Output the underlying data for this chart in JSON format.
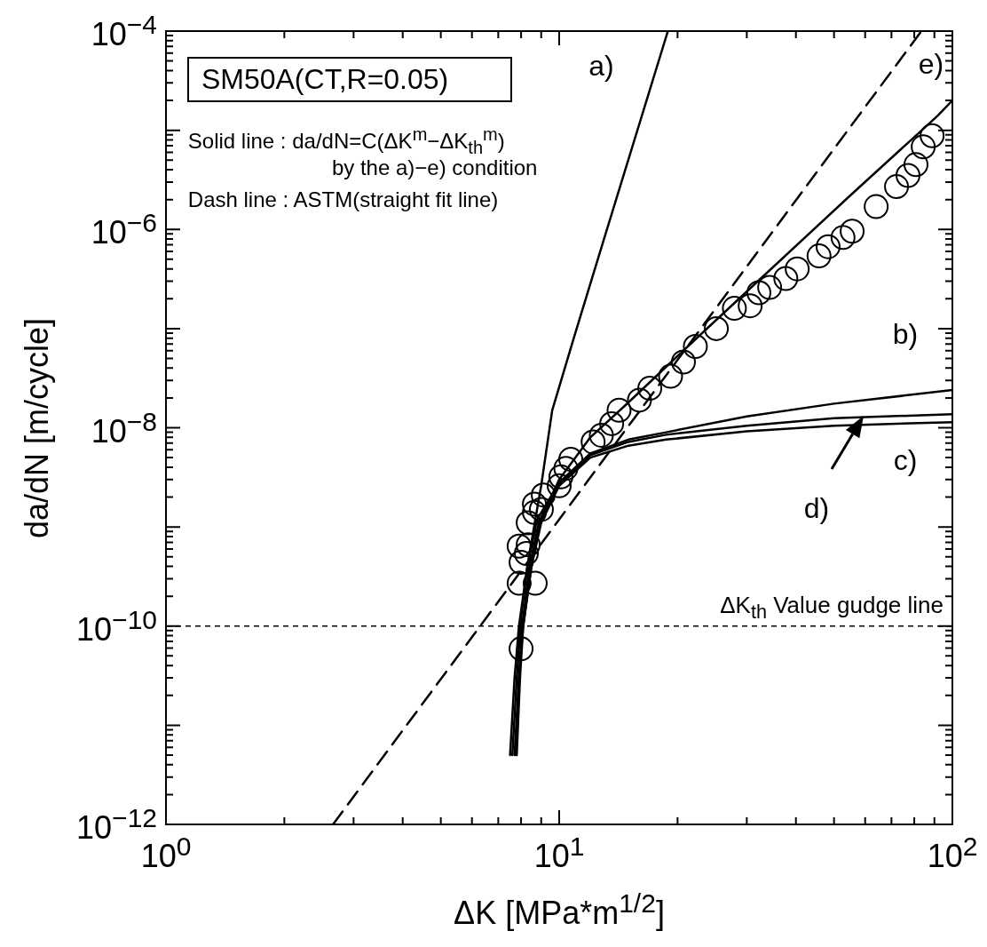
{
  "chart_data": {
    "type": "scatter",
    "xlabel": "ΔK [MPa*m$^{1/2}$]",
    "ylabel": "da/dN [m/cycle]",
    "log": "xy",
    "xlim": [
      1,
      100
    ],
    "ylim": [
      1e-12,
      0.0001
    ],
    "xticks": [
      {
        "value": 1,
        "label": "10$^{0}$"
      },
      {
        "value": 2,
        "label": null
      },
      {
        "value": 3,
        "label": null
      },
      {
        "value": 4,
        "label": null
      },
      {
        "value": 5,
        "label": null
      },
      {
        "value": 6,
        "label": null
      },
      {
        "value": 7,
        "label": null
      },
      {
        "value": 8,
        "label": null
      },
      {
        "value": 9,
        "label": null
      },
      {
        "value": 10,
        "label": "10$^{1}$"
      },
      {
        "value": 20,
        "label": null
      },
      {
        "value": 30,
        "label": null
      },
      {
        "value": 40,
        "label": null
      },
      {
        "value": 50,
        "label": null
      },
      {
        "value": 60,
        "label": null
      },
      {
        "value": 70,
        "label": null
      },
      {
        "value": 80,
        "label": null
      },
      {
        "value": 90,
        "label": null
      },
      {
        "value": 100,
        "label": "10$^{2}$"
      }
    ],
    "yticks": [
      {
        "value": 1e-12,
        "label": "10$^{−12}$"
      },
      {
        "value": 2e-12,
        "label": null
      },
      {
        "value": 3e-12,
        "label": null
      },
      {
        "value": 4e-12,
        "label": null
      },
      {
        "value": 5e-12,
        "label": null
      },
      {
        "value": 6e-12,
        "label": null
      },
      {
        "value": 7e-12,
        "label": null
      },
      {
        "value": 8e-12,
        "label": null
      },
      {
        "value": 9e-12,
        "label": null
      },
      {
        "value": 1e-11,
        "label": null
      },
      {
        "value": 2e-11,
        "label": null
      },
      {
        "value": 3e-11,
        "label": null
      },
      {
        "value": 4e-11,
        "label": null
      },
      {
        "value": 5e-11,
        "label": null
      },
      {
        "value": 6e-11,
        "label": null
      },
      {
        "value": 7e-11,
        "label": null
      },
      {
        "value": 8e-11,
        "label": null
      },
      {
        "value": 9e-11,
        "label": null
      },
      {
        "value": 1e-10,
        "label": "10$^{−10}$"
      },
      {
        "value": 2e-10,
        "label": null
      },
      {
        "value": 3e-10,
        "label": null
      },
      {
        "value": 4e-10,
        "label": null
      },
      {
        "value": 5e-10,
        "label": null
      },
      {
        "value": 6e-10,
        "label": null
      },
      {
        "value": 7e-10,
        "label": null
      },
      {
        "value": 8e-10,
        "label": null
      },
      {
        "value": 9e-10,
        "label": null
      },
      {
        "value": 1e-09,
        "label": null
      },
      {
        "value": 2e-09,
        "label": null
      },
      {
        "value": 3e-09,
        "label": null
      },
      {
        "value": 4e-09,
        "label": null
      },
      {
        "value": 5e-09,
        "label": null
      },
      {
        "value": 6e-09,
        "label": null
      },
      {
        "value": 7e-09,
        "label": null
      },
      {
        "value": 8e-09,
        "label": null
      },
      {
        "value": 9e-09,
        "label": null
      },
      {
        "value": 1e-08,
        "label": "10$^{−8}$"
      },
      {
        "value": 2e-08,
        "label": null
      },
      {
        "value": 3e-08,
        "label": null
      },
      {
        "value": 4e-08,
        "label": null
      },
      {
        "value": 5e-08,
        "label": null
      },
      {
        "value": 6e-08,
        "label": null
      },
      {
        "value": 7e-08,
        "label": null
      },
      {
        "value": 8e-08,
        "label": null
      },
      {
        "value": 9e-08,
        "label": null
      },
      {
        "value": 1e-07,
        "label": null
      },
      {
        "value": 2e-07,
        "label": null
      },
      {
        "value": 3e-07,
        "label": null
      },
      {
        "value": 4e-07,
        "label": null
      },
      {
        "value": 5e-07,
        "label": null
      },
      {
        "value": 6e-07,
        "label": null
      },
      {
        "value": 7e-07,
        "label": null
      },
      {
        "value": 8e-07,
        "label": null
      },
      {
        "value": 9e-07,
        "label": null
      },
      {
        "value": 1e-06,
        "label": "10$^{−6}$"
      },
      {
        "value": 2e-06,
        "label": null
      },
      {
        "value": 3e-06,
        "label": null
      },
      {
        "value": 4e-06,
        "label": null
      },
      {
        "value": 5e-06,
        "label": null
      },
      {
        "value": 6e-06,
        "label": null
      },
      {
        "value": 7e-06,
        "label": null
      },
      {
        "value": 8e-06,
        "label": null
      },
      {
        "value": 9e-06,
        "label": null
      },
      {
        "value": 1e-05,
        "label": null
      },
      {
        "value": 2e-05,
        "label": null
      },
      {
        "value": 3e-05,
        "label": null
      },
      {
        "value": 4e-05,
        "label": null
      },
      {
        "value": 5e-05,
        "label": null
      },
      {
        "value": 6e-05,
        "label": null
      },
      {
        "value": 7e-05,
        "label": null
      },
      {
        "value": 8e-05,
        "label": null
      },
      {
        "value": 9e-05,
        "label": null
      },
      {
        "value": 0.0001,
        "label": "10$^{−4}$"
      }
    ],
    "grid": false,
    "legend": "right",
    "annotations": [
      "SM50A(CT,R=0.05)",
      "Solid line : da/dN=C(ΔK$^{m}$−ΔK$_{th}$$^{m}$)",
      "by the a)−e) condition",
      "Dash line : ASTM(straight fit line)"
    ],
    "ref_lines": [
      {
        "axis": "y",
        "value": 1e-10,
        "label": "ΔK$_{th}$ Value gudge line",
        "line_style": "dashed",
        "color": "#000000"
      }
    ],
    "series": [
      {
        "color": "#000000",
        "marker": "circle",
        "x": [
          8.0,
          7.91,
          8.69,
          8.0,
          8.25,
          7.91,
          8.34,
          8.34,
          8.65,
          9.01,
          8.65,
          9.11,
          10.0,
          10.1,
          10.4,
          10.7,
          12.2,
          12.8,
          13.6,
          14.2,
          16.0,
          17.0,
          19.2,
          20.7,
          22.2,
          25.1,
          27.9,
          30.6,
          32.2,
          34.3,
          37.7,
          40.3,
          45.8,
          48.3,
          52.7,
          55.6,
          64.0,
          72.1,
          77.1,
          80.8,
          84.3,
          88.8
        ],
        "values": [
          5.9e-11,
          2.7e-10,
          2.7e-10,
          4.4e-10,
          5.4e-10,
          6.4e-10,
          6.6e-10,
          1.1e-09,
          1.4e-09,
          1.5e-09,
          1.7e-09,
          2.1e-09,
          2.6e-09,
          3.2e-09,
          3.9e-09,
          4.8e-09,
          7.2e-09,
          8.4e-09,
          1.1e-08,
          1.5e-08,
          1.9e-08,
          2.5e-08,
          3.3e-08,
          4.6e-08,
          6.6e-08,
          1e-07,
          1.6e-07,
          1.7e-07,
          2.3e-07,
          2.6e-07,
          3.2e-07,
          4e-07,
          5.4e-07,
          6.7e-07,
          8.3e-07,
          9.6e-07,
          1.7e-06,
          2.7e-06,
          3.5e-06,
          4.5e-06,
          6.8e-06,
          8.8e-06
        ]
      },
      {
        "type": "line",
        "color": "#000000",
        "line_style": "dashed",
        "x": [
          2.66,
          83.4
        ],
        "values": [
          1e-12,
          0.0001
        ]
      },
      {
        "type": "line",
        "name": "a)",
        "color": "#000000",
        "line_style": "solid",
        "x": [
          7.6,
          7.8,
          8.0,
          8.3,
          8.7,
          9.0,
          9.6,
          10.9,
          13,
          18.9
        ],
        "values": [
          5e-12,
          3e-11,
          1.2e-10,
          4e-10,
          1.2e-09,
          2.6e-09,
          1.5e-08,
          8.1e-08,
          8e-07,
          0.0001
        ]
      },
      {
        "type": "line",
        "name": "b)",
        "color": "#000000",
        "line_style": "solid",
        "x": [
          7.5,
          7.7,
          7.9,
          8.3,
          8.8,
          10,
          12,
          15,
          18.7,
          30,
          50,
          100
        ],
        "values": [
          5e-12,
          3e-11,
          1e-10,
          4e-10,
          1.2e-09,
          2.8e-09,
          5.5e-09,
          7.6e-09,
          9e-09,
          1.3e-08,
          1.75e-08,
          2.4e-08
        ]
      },
      {
        "type": "line",
        "name": "c)",
        "color": "#000000",
        "line_style": "solid",
        "x": [
          7.8,
          7.95,
          8.1,
          8.5,
          9.0,
          10,
          12,
          15,
          18.7,
          30,
          50,
          100
        ],
        "values": [
          5e-12,
          3e-11,
          1e-10,
          4e-10,
          1.1e-09,
          2.6e-09,
          5e-09,
          6.6e-09,
          7.6e-09,
          9.2e-09,
          1.05e-08,
          1.14e-08
        ]
      },
      {
        "type": "line",
        "name": "d)",
        "color": "#000000",
        "line_style": "solid",
        "x": [
          7.75,
          7.9,
          8.05,
          8.4,
          8.9,
          10,
          12,
          15,
          18.7,
          30,
          50,
          100
        ],
        "values": [
          5e-12,
          3e-11,
          1e-10,
          4e-10,
          1.15e-09,
          2.7e-09,
          5.3e-09,
          7.2e-09,
          8.5e-09,
          1.05e-08,
          1.25e-08,
          1.37e-08
        ]
      },
      {
        "type": "line",
        "name": "e)",
        "color": "#000000",
        "line_style": "solid",
        "x": [
          7.7,
          7.9,
          8.1,
          8.5,
          9.0,
          10,
          12,
          15,
          19.7,
          31.4,
          55,
          91.7,
          100
        ],
        "values": [
          5e-12,
          3e-11,
          1e-10,
          4e-10,
          1.2e-09,
          3e-09,
          8e-09,
          1.8e-08,
          5e-08,
          2.8e-07,
          2.2e-06,
          1.4e-05,
          2e-05
        ]
      }
    ]
  }
}
